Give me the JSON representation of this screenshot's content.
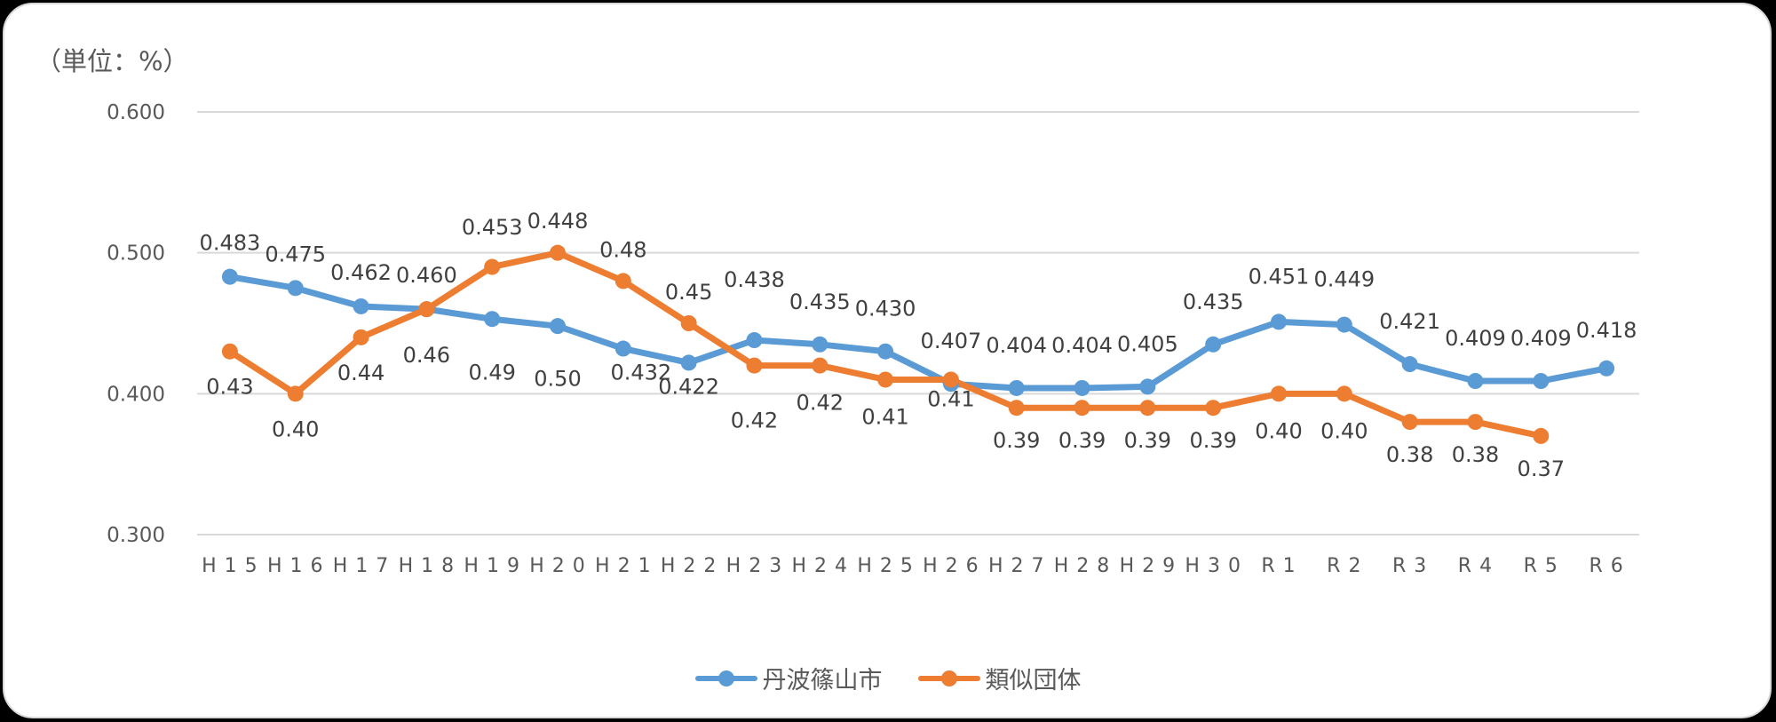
{
  "unit_label": "（単位：%）",
  "legend": [
    {
      "label": "丹波篠山市",
      "color": "#5B9BD5"
    },
    {
      "label": "類似団体",
      "color": "#ED7D31"
    }
  ],
  "chart_data": {
    "type": "line",
    "title": "",
    "unit": "（単位：%）",
    "xlabel": "",
    "ylabel": "",
    "ylim": [
      0.3,
      0.6
    ],
    "yticks": [
      "0.600",
      "0.500",
      "0.400",
      "0.300"
    ],
    "grid": true,
    "legend_position": "bottom",
    "categories": [
      "H15",
      "H16",
      "H17",
      "H18",
      "H19",
      "H20",
      "H21",
      "H22",
      "H23",
      "H24",
      "H25",
      "H26",
      "H27",
      "H28",
      "H29",
      "H30",
      "R1",
      "R2",
      "R3",
      "R4",
      "R5",
      "R6"
    ],
    "x_tick_labels": [
      "Ｈ１５",
      "Ｈ１６",
      "Ｈ１７",
      "Ｈ１８",
      "Ｈ１９",
      "Ｈ２０",
      "Ｈ２１",
      "Ｈ２２",
      "Ｈ２３",
      "Ｈ２４",
      "Ｈ２５",
      "Ｈ２６",
      "Ｈ２７",
      "Ｈ２８",
      "Ｈ２９",
      "Ｈ３０",
      "Ｒ１",
      "Ｒ２",
      "Ｒ３",
      "Ｒ４",
      "Ｒ５",
      "Ｒ６"
    ],
    "series": [
      {
        "name": "丹波篠山市",
        "color": "#5B9BD5",
        "values": [
          0.483,
          0.475,
          0.462,
          0.46,
          0.453,
          0.448,
          0.432,
          0.422,
          0.438,
          0.435,
          0.43,
          0.407,
          0.404,
          0.404,
          0.405,
          0.435,
          0.451,
          0.449,
          0.421,
          0.409,
          0.409,
          0.418
        ],
        "labels": [
          "0.483",
          "0.475",
          "0.462",
          "0.460",
          "0.453",
          "0.448",
          "0.432",
          "0.422",
          "0.438",
          "0.435",
          "0.430",
          "0.407",
          "0.404",
          "0.404",
          "0.405",
          "0.435",
          "0.451",
          "0.449",
          "0.421",
          "0.409",
          "0.409",
          "0.418"
        ]
      },
      {
        "name": "類似団体",
        "color": "#ED7D31",
        "values": [
          0.43,
          0.4,
          0.44,
          0.46,
          0.49,
          0.5,
          0.48,
          0.45,
          0.42,
          0.42,
          0.41,
          0.41,
          0.39,
          0.39,
          0.39,
          0.39,
          0.4,
          0.4,
          0.38,
          0.38,
          0.37,
          null
        ],
        "labels": [
          "0.43",
          "0.40",
          "0.44",
          "0.46",
          "0.49",
          "0.50",
          "0.48",
          "0.45",
          "0.42",
          "0.42",
          "0.41",
          "0.41",
          "0.39",
          "0.39",
          "0.39",
          "0.39",
          "0.40",
          "0.40",
          "0.38",
          "0.38",
          "0.37",
          ""
        ]
      }
    ]
  }
}
